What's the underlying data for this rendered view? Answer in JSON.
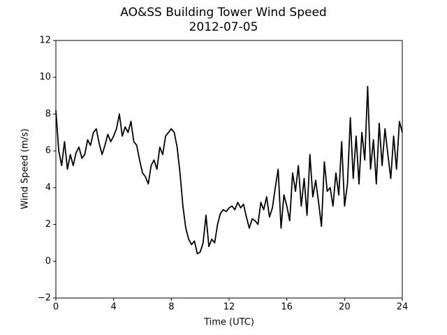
{
  "chart_data": {
    "type": "line",
    "title": "AO&SS Building Tower Wind Speed",
    "subtitle": "2012-07-05",
    "x_label": "Time (UTC)",
    "y_label": "Wind Speed (m/s)",
    "xlim": [
      0,
      24
    ],
    "xticks": [
      0,
      4,
      8,
      12,
      16,
      20,
      24
    ],
    "ylim": [
      -2,
      12
    ],
    "yticks": [
      {
        "value": -2,
        "label": "−2"
      },
      0,
      2,
      4,
      6,
      8,
      10,
      12
    ],
    "x": [
      0,
      0.2,
      0.4,
      0.6,
      0.8,
      1,
      1.2,
      1.4,
      1.6,
      1.8,
      2,
      2.2,
      2.4,
      2.6,
      2.8,
      3,
      3.2,
      3.4,
      3.6,
      3.8,
      4,
      4.2,
      4.4,
      4.6,
      4.8,
      5,
      5.2,
      5.4,
      5.6,
      5.8,
      6,
      6.2,
      6.4,
      6.6,
      6.8,
      7,
      7.2,
      7.4,
      7.6,
      7.8,
      8,
      8.2,
      8.4,
      8.6,
      8.8,
      9,
      9.2,
      9.4,
      9.6,
      9.8,
      10,
      10.2,
      10.4,
      10.6,
      10.8,
      11,
      11.2,
      11.4,
      11.6,
      11.8,
      12,
      12.2,
      12.4,
      12.6,
      12.8,
      13,
      13.2,
      13.4,
      13.6,
      13.8,
      14,
      14.2,
      14.4,
      14.6,
      14.8,
      15,
      15.2,
      15.4,
      15.6,
      15.8,
      16,
      16.2,
      16.4,
      16.6,
      16.8,
      17,
      17.2,
      17.4,
      17.6,
      17.8,
      18,
      18.2,
      18.4,
      18.6,
      18.8,
      19,
      19.2,
      19.4,
      19.6,
      19.8,
      20,
      20.2,
      20.4,
      20.6,
      20.8,
      21,
      21.2,
      21.4,
      21.6,
      21.8,
      22,
      22.2,
      22.4,
      22.6,
      22.8,
      23,
      23.2,
      23.4,
      23.6,
      23.8,
      24
    ],
    "series": [
      {
        "color": "#000000",
        "values": [
          8.2,
          6.0,
          5.2,
          6.5,
          5.0,
          5.8,
          5.2,
          5.9,
          6.2,
          5.6,
          5.8,
          6.6,
          6.3,
          7.0,
          7.2,
          6.4,
          5.8,
          6.3,
          6.9,
          6.5,
          6.8,
          7.2,
          8.0,
          6.8,
          7.3,
          7.0,
          7.6,
          6.5,
          6.3,
          5.5,
          4.8,
          4.6,
          4.2,
          5.2,
          5.5,
          5.0,
          6.2,
          5.8,
          6.8,
          7.0,
          7.2,
          7.0,
          6.2,
          4.8,
          3.0,
          1.8,
          1.2,
          0.9,
          1.1,
          0.4,
          0.5,
          1.0,
          2.5,
          0.8,
          1.2,
          1.0,
          2.0,
          2.6,
          2.8,
          2.7,
          2.9,
          3.0,
          2.8,
          3.2,
          2.9,
          3.1,
          2.4,
          1.8,
          2.3,
          2.2,
          2.0,
          3.2,
          2.8,
          3.5,
          2.4,
          2.9,
          4.0,
          5.0,
          1.8,
          3.6,
          3.0,
          2.2,
          4.8,
          3.8,
          5.2,
          3.0,
          4.5,
          2.5,
          5.8,
          3.5,
          4.4,
          3.2,
          1.9,
          5.4,
          3.8,
          4.0,
          3.0,
          4.8,
          3.6,
          6.5,
          3.0,
          4.2,
          7.8,
          4.5,
          6.8,
          4.2,
          7.0,
          5.5,
          9.5,
          5.0,
          6.6,
          4.2,
          7.5,
          5.2,
          7.2,
          5.8,
          4.5,
          6.8,
          5.0,
          7.6,
          7.0
        ]
      }
    ]
  }
}
